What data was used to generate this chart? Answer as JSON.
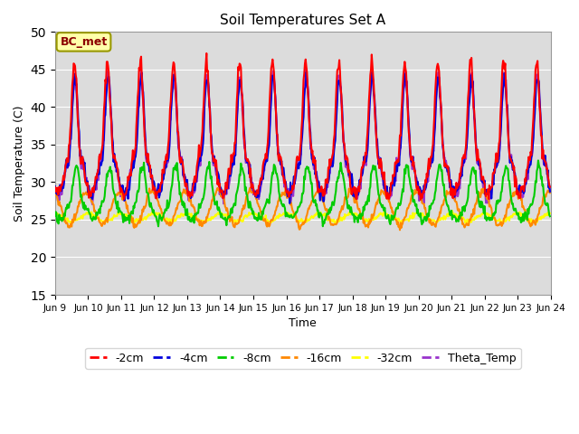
{
  "title": "Soil Temperatures Set A",
  "xlabel": "Time",
  "ylabel": "Soil Temperature (C)",
  "ylim": [
    15,
    50
  ],
  "yticks": [
    15,
    20,
    25,
    30,
    35,
    40,
    45,
    50
  ],
  "annotation": "BC_met",
  "background_color": "#dcdcdc",
  "series_colors": {
    "-2cm": "#ff0000",
    "-4cm": "#0000dd",
    "-8cm": "#00cc00",
    "-16cm": "#ff8800",
    "-32cm": "#ffff00",
    "Theta_Temp": "#9933cc"
  },
  "x_tick_labels": [
    "Jun 9",
    "Jun 10",
    "Jun 11",
    "Jun 12",
    "Jun 13",
    "Jun 14",
    "Jun 15",
    "Jun 16",
    "Jun 17",
    "Jun 18",
    "Jun 19",
    "Jun 20",
    "Jun 21",
    "Jun 22",
    "Jun 23",
    "Jun 24"
  ],
  "n_days": 15,
  "pts_per_day": 48
}
